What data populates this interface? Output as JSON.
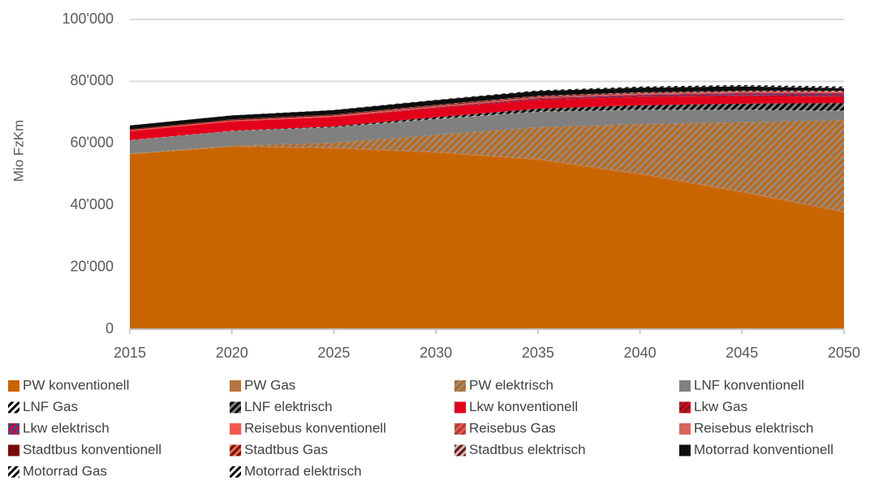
{
  "chart_data": {
    "type": "stacked_area",
    "ylabel": "Mio FzKm",
    "x": [
      2015,
      2020,
      2025,
      2030,
      2035,
      2040,
      2045,
      2050
    ],
    "xlim": [
      2015,
      2050
    ],
    "xticks": [
      2015,
      2020,
      2025,
      2030,
      2035,
      2040,
      2045,
      2050
    ],
    "ylim": [
      0,
      100000
    ],
    "yticks": [
      0,
      {
        "value": 20000,
        "label": "20'000"
      },
      {
        "value": 40000,
        "label": "40'000"
      },
      {
        "value": 60000,
        "label": "60'000"
      },
      {
        "value": 80000,
        "label": "80'000"
      },
      {
        "value": 100000,
        "label": "100'000"
      }
    ],
    "grid": true,
    "series": [
      {
        "name": "PW konventionell",
        "color": "#c96500",
        "values": [
          56500,
          58900,
          58400,
          57000,
          54700,
          50000,
          44200,
          37700
        ]
      },
      {
        "name": "PW Gas",
        "color": "#b5733f",
        "values": [
          100,
          150,
          200,
          250,
          300,
          300,
          300,
          300
        ]
      },
      {
        "name": "PW elektrisch",
        "color": "#c96500",
        "hatch": "#8c8c8c",
        "values": [
          100,
          200,
          1600,
          5500,
          10200,
          15900,
          22300,
          29500
        ]
      },
      {
        "name": "LNF konventionell",
        "color": "#808080",
        "values": [
          4300,
          4700,
          5000,
          5100,
          5000,
          4600,
          4000,
          3000
        ]
      },
      {
        "name": "LNF Gas",
        "color": "#ffffff",
        "hatch": "#000000",
        "values": [
          50,
          60,
          80,
          100,
          100,
          100,
          100,
          100
        ]
      },
      {
        "name": "LNF elektrisch",
        "color": "#808080",
        "hatch": "#000000",
        "values": [
          0,
          50,
          200,
          500,
          900,
          1400,
          1900,
          2400
        ]
      },
      {
        "name": "Lkw konventionell",
        "color": "#e3001b",
        "values": [
          2900,
          3000,
          3000,
          2900,
          2800,
          2600,
          2400,
          2000
        ]
      },
      {
        "name": "Lkw Gas",
        "color": "#e3001b",
        "hatch": "#7a1a1a",
        "values": [
          20,
          40,
          100,
          200,
          300,
          300,
          300,
          300
        ]
      },
      {
        "name": "Lkw elektrisch",
        "color": "#e3001b",
        "hatch": "#3050a0",
        "values": [
          0,
          10,
          50,
          150,
          300,
          500,
          700,
          900
        ]
      },
      {
        "name": "Reisebus konventionell",
        "color": "#f4584c",
        "values": [
          250,
          260,
          270,
          270,
          260,
          250,
          240,
          230
        ]
      },
      {
        "name": "Reisebus Gas",
        "color": "#f4584c",
        "hatch": "#a04040",
        "values": [
          10,
          10,
          20,
          30,
          30,
          30,
          30,
          30
        ]
      },
      {
        "name": "Reisebus elektrisch",
        "color": "#f4584c",
        "hatch": "#c07070",
        "values": [
          0,
          0,
          10,
          20,
          40,
          60,
          80,
          100
        ]
      },
      {
        "name": "Stadtbus konventionell",
        "color": "#7b0a0a",
        "values": [
          300,
          300,
          300,
          280,
          250,
          200,
          150,
          100
        ]
      },
      {
        "name": "Stadtbus Gas",
        "color": "#7b0a0a",
        "hatch": "#e07050",
        "values": [
          20,
          20,
          30,
          30,
          30,
          30,
          30,
          30
        ]
      },
      {
        "name": "Stadtbus elektrisch",
        "color": "#7b0a0a",
        "hatch": "#c0c0c0",
        "values": [
          10,
          20,
          50,
          100,
          150,
          200,
          250,
          300
        ]
      },
      {
        "name": "Motorrad konventionell",
        "color": "#0d0d0d",
        "values": [
          1200,
          1300,
          1400,
          1500,
          1500,
          1500,
          1400,
          800
        ]
      },
      {
        "name": "Motorrad Gas",
        "color": "#ffffff",
        "hatch": "#0d0d0d",
        "values": [
          0,
          0,
          10,
          10,
          10,
          10,
          10,
          10
        ]
      },
      {
        "name": "Motorrad elektrisch",
        "color": "#0d0d0d",
        "hatch": "#ffffff",
        "values": [
          10,
          30,
          80,
          150,
          250,
          350,
          450,
          550
        ]
      }
    ]
  }
}
